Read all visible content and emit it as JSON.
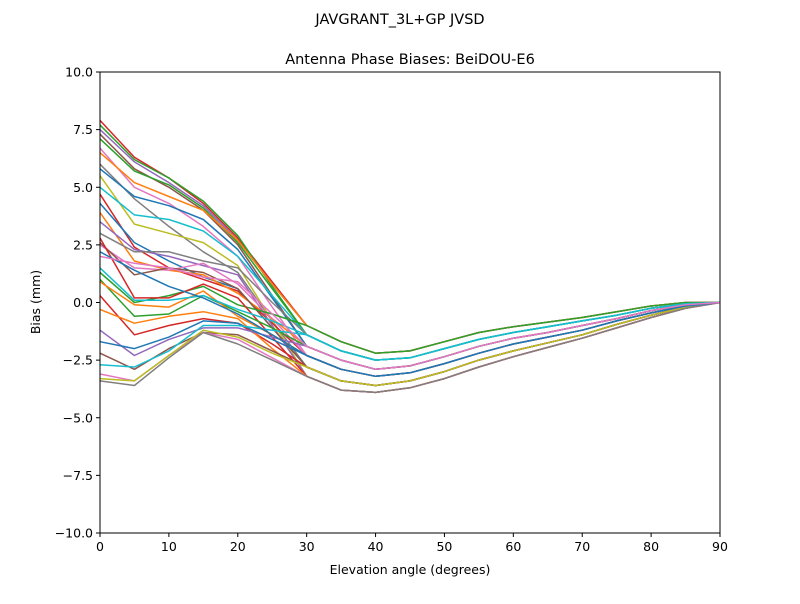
{
  "chart_data": {
    "type": "line",
    "suptitle": "JAVGRANT_3L+GP  JVSD",
    "title": "Antenna Phase Biases: BeiDOU-E6",
    "xlabel": "Elevation angle (degrees)",
    "ylabel": "Bias (mm)",
    "xlim": [
      0,
      90
    ],
    "ylim": [
      -10,
      10
    ],
    "xticks": [
      0,
      10,
      20,
      30,
      40,
      50,
      60,
      70,
      80,
      90
    ],
    "xtick_labels": [
      "0",
      "10",
      "20",
      "30",
      "40",
      "50",
      "60",
      "70",
      "80",
      "90"
    ],
    "yticks": [
      -10,
      -7.5,
      -5,
      -2.5,
      0,
      2.5,
      5,
      7.5,
      10
    ],
    "ytick_labels": [
      "−10.0",
      "−7.5",
      "−5.0",
      "−2.5",
      "0.0",
      "2.5",
      "5.0",
      "7.5",
      "10.0"
    ],
    "grid": false,
    "colors": [
      "#1f77b4",
      "#ff7f0e",
      "#2ca02c",
      "#d62728",
      "#9467bd",
      "#8c564b",
      "#e377c2",
      "#7f7f7f",
      "#bcbd22",
      "#17becf"
    ],
    "x": [
      0,
      5,
      10,
      15,
      20,
      25,
      30,
      35,
      40,
      45,
      50,
      55,
      60,
      65,
      70,
      75,
      80,
      85,
      90
    ],
    "series": [
      {
        "color": "#d62728",
        "values": [
          7.9,
          6.3,
          5.4,
          4.3,
          2.8,
          0.9,
          -1.0,
          -1.7,
          -2.2,
          -2.1,
          -1.7,
          -1.3,
          -1.05,
          -0.85,
          -0.65,
          -0.4,
          -0.15,
          0,
          0
        ]
      },
      {
        "color": "#2ca02c",
        "values": [
          7.7,
          6.2,
          5.4,
          4.4,
          2.9,
          0.7,
          -1.4,
          -2.1,
          -2.5,
          -2.4,
          -2.0,
          -1.6,
          -1.3,
          -1.05,
          -0.8,
          -0.55,
          -0.25,
          -0.05,
          0
        ]
      },
      {
        "color": "#9467bd",
        "values": [
          7.5,
          6.1,
          5.2,
          4.2,
          2.7,
          0.8,
          -1.0,
          -1.7,
          -2.2,
          -2.1,
          -1.7,
          -1.3,
          -1.05,
          -0.85,
          -0.65,
          -0.4,
          -0.15,
          0,
          0
        ]
      },
      {
        "color": "#8c564b",
        "values": [
          7.3,
          5.8,
          5.0,
          4.0,
          2.5,
          0.3,
          -1.9,
          -2.5,
          -2.9,
          -2.75,
          -2.35,
          -1.9,
          -1.55,
          -1.3,
          -1.0,
          -0.7,
          -0.35,
          -0.1,
          0
        ]
      },
      {
        "color": "#2ca02c",
        "values": [
          7.1,
          5.7,
          5.1,
          4.1,
          2.6,
          0.6,
          -1.4,
          -2.1,
          -2.5,
          -2.4,
          -2.0,
          -1.6,
          -1.3,
          -1.05,
          -0.8,
          -0.55,
          -0.25,
          -0.05,
          0
        ]
      },
      {
        "color": "#e377c2",
        "values": [
          6.7,
          5.0,
          4.3,
          3.3,
          2.0,
          -0.2,
          -2.3,
          -2.9,
          -3.2,
          -3.05,
          -2.65,
          -2.2,
          -1.8,
          -1.5,
          -1.2,
          -0.8,
          -0.45,
          -0.15,
          0
        ]
      },
      {
        "color": "#ff7f0e",
        "values": [
          6.5,
          5.2,
          4.6,
          4.0,
          2.7,
          0.8,
          -1.0,
          -1.7,
          -2.2,
          -2.1,
          -1.7,
          -1.3,
          -1.05,
          -0.85,
          -0.65,
          -0.4,
          -0.15,
          0,
          0
        ]
      },
      {
        "color": "#7f7f7f",
        "values": [
          6.0,
          4.5,
          3.3,
          2.2,
          1.3,
          -0.8,
          -2.8,
          -3.4,
          -3.6,
          -3.4,
          -3.0,
          -2.5,
          -2.1,
          -1.75,
          -1.4,
          -0.95,
          -0.55,
          -0.2,
          0
        ]
      },
      {
        "color": "#1f77b4",
        "values": [
          5.8,
          4.6,
          4.2,
          3.6,
          2.3,
          0.2,
          -1.9,
          -2.5,
          -2.9,
          -2.75,
          -2.35,
          -1.9,
          -1.55,
          -1.3,
          -1.0,
          -0.7,
          -0.35,
          -0.1,
          0
        ]
      },
      {
        "color": "#bcbd22",
        "values": [
          5.5,
          3.4,
          3.0,
          2.6,
          1.6,
          -0.8,
          -3.2,
          -3.8,
          -3.9,
          -3.7,
          -3.3,
          -2.8,
          -2.35,
          -1.95,
          -1.55,
          -1.1,
          -0.65,
          -0.25,
          0
        ]
      },
      {
        "color": "#17becf",
        "values": [
          5.0,
          3.8,
          3.6,
          3.1,
          2.0,
          0.3,
          -1.4,
          -2.1,
          -2.5,
          -2.4,
          -2.0,
          -1.6,
          -1.3,
          -1.05,
          -0.8,
          -0.55,
          -0.25,
          -0.05,
          0
        ]
      },
      {
        "color": "#d62728",
        "values": [
          4.7,
          2.4,
          1.5,
          1.0,
          0.5,
          -0.9,
          -2.3,
          -2.9,
          -3.2,
          -3.05,
          -2.65,
          -2.2,
          -1.8,
          -1.5,
          -1.2,
          -0.8,
          -0.45,
          -0.15,
          0
        ]
      },
      {
        "color": "#1f77b4",
        "values": [
          4.3,
          2.6,
          1.8,
          1.1,
          0.6,
          -1.1,
          -2.8,
          -3.4,
          -3.6,
          -3.4,
          -3.0,
          -2.5,
          -2.1,
          -1.75,
          -1.4,
          -0.95,
          -0.55,
          -0.2,
          0
        ]
      },
      {
        "color": "#ff7f0e",
        "values": [
          3.9,
          1.8,
          1.4,
          1.2,
          0.4,
          -0.7,
          -1.9,
          -2.5,
          -2.9,
          -2.75,
          -2.35,
          -1.9,
          -1.55,
          -1.3,
          -1.0,
          -0.7,
          -0.35,
          -0.1,
          0
        ]
      },
      {
        "color": "#9467bd",
        "values": [
          3.5,
          2.3,
          2.0,
          1.6,
          1.2,
          -1.0,
          -3.2,
          -3.8,
          -3.9,
          -3.7,
          -3.3,
          -2.8,
          -2.35,
          -1.95,
          -1.55,
          -1.1,
          -0.65,
          -0.25,
          0
        ]
      },
      {
        "color": "#7f7f7f",
        "values": [
          3.0,
          2.2,
          2.2,
          1.8,
          1.5,
          0.0,
          -1.4,
          -2.1,
          -2.5,
          -2.4,
          -2.0,
          -1.6,
          -1.3,
          -1.05,
          -0.8,
          -0.55,
          -0.25,
          -0.05,
          0
        ]
      },
      {
        "color": "#e377c2",
        "values": [
          2.5,
          1.5,
          1.4,
          1.7,
          0.8,
          -0.7,
          -2.3,
          -2.9,
          -3.2,
          -3.05,
          -2.65,
          -2.2,
          -1.8,
          -1.5,
          -1.2,
          -0.8,
          -0.45,
          -0.15,
          0
        ]
      },
      {
        "color": "#8c564b",
        "values": [
          2.6,
          1.2,
          1.5,
          1.3,
          0.6,
          -1.1,
          -2.8,
          -3.4,
          -3.6,
          -3.4,
          -3.0,
          -2.5,
          -2.1,
          -1.75,
          -1.4,
          -0.95,
          -0.55,
          -0.2,
          0
        ]
      },
      {
        "color": "#2ca02c",
        "values": [
          1.3,
          0.0,
          0.3,
          0.7,
          -0.1,
          -0.5,
          -1.0,
          -1.7,
          -2.2,
          -2.1,
          -1.7,
          -1.3,
          -1.05,
          -0.85,
          -0.65,
          -0.4,
          -0.15,
          0,
          0
        ]
      },
      {
        "color": "#d62728",
        "values": [
          2.8,
          0.2,
          0.2,
          0.8,
          0.2,
          -1.5,
          -3.2,
          -3.8,
          -3.9,
          -3.7,
          -3.3,
          -2.8,
          -2.35,
          -1.95,
          -1.55,
          -1.1,
          -0.65,
          -0.25,
          0
        ]
      },
      {
        "color": "#2ca02c",
        "values": [
          1.0,
          -0.6,
          -0.5,
          0.3,
          -0.4,
          -1.1,
          -1.9,
          -2.5,
          -2.9,
          -2.75,
          -2.35,
          -1.9,
          -1.55,
          -1.3,
          -1.0,
          -0.7,
          -0.35,
          -0.1,
          0
        ]
      },
      {
        "color": "#ff7f0e",
        "values": [
          0.9,
          -0.1,
          -0.2,
          0.5,
          -0.6,
          -1.4,
          -2.3,
          -2.9,
          -3.2,
          -3.05,
          -2.65,
          -2.2,
          -1.8,
          -1.5,
          -1.2,
          -0.8,
          -0.45,
          -0.15,
          0
        ]
      },
      {
        "color": "#17becf",
        "values": [
          1.5,
          0.1,
          0.1,
          0.3,
          -0.3,
          -0.8,
          -1.4,
          -2.1,
          -2.5,
          -2.4,
          -2.0,
          -1.6,
          -1.3,
          -1.05,
          -0.8,
          -0.55,
          -0.25,
          -0.05,
          0
        ]
      },
      {
        "color": "#d62728",
        "values": [
          0.3,
          -1.4,
          -1.0,
          -0.7,
          -0.9,
          -1.8,
          -2.8,
          -3.4,
          -3.6,
          -3.4,
          -3.0,
          -2.5,
          -2.1,
          -1.75,
          -1.4,
          -0.95,
          -0.55,
          -0.2,
          0
        ]
      },
      {
        "color": "#ff7f0e",
        "values": [
          -0.3,
          -0.9,
          -0.6,
          -0.4,
          -0.7,
          -2.0,
          -3.2,
          -3.8,
          -3.9,
          -3.7,
          -3.3,
          -2.8,
          -2.35,
          -1.95,
          -1.55,
          -1.1,
          -0.65,
          -0.25,
          0
        ]
      },
      {
        "color": "#9467bd",
        "values": [
          -1.2,
          -2.3,
          -1.6,
          -1.1,
          -1.1,
          -1.5,
          -1.9,
          -2.5,
          -2.9,
          -2.75,
          -2.35,
          -1.9,
          -1.55,
          -1.3,
          -1.0,
          -0.7,
          -0.35,
          -0.1,
          0
        ]
      },
      {
        "color": "#1f77b4",
        "values": [
          -1.7,
          -2.0,
          -1.5,
          -0.8,
          -0.9,
          -1.6,
          -2.3,
          -2.9,
          -3.2,
          -3.05,
          -2.65,
          -2.2,
          -1.8,
          -1.5,
          -1.2,
          -0.8,
          -0.45,
          -0.15,
          0
        ]
      },
      {
        "color": "#8c564b",
        "values": [
          -2.2,
          -2.9,
          -2.0,
          -1.3,
          -1.4,
          -2.1,
          -2.8,
          -3.4,
          -3.6,
          -3.4,
          -3.0,
          -2.5,
          -2.1,
          -1.75,
          -1.4,
          -0.95,
          -0.55,
          -0.2,
          0
        ]
      },
      {
        "color": "#17becf",
        "values": [
          -2.7,
          -2.8,
          -2.1,
          -1.0,
          -1.0,
          -1.2,
          -1.4,
          -2.1,
          -2.5,
          -2.4,
          -2.0,
          -1.6,
          -1.3,
          -1.05,
          -0.8,
          -0.55,
          -0.25,
          -0.05,
          0
        ]
      },
      {
        "color": "#e377c2",
        "values": [
          -3.1,
          -3.4,
          -2.3,
          -1.3,
          -1.6,
          -2.4,
          -3.2,
          -3.8,
          -3.9,
          -3.7,
          -3.3,
          -2.8,
          -2.35,
          -1.95,
          -1.55,
          -1.1,
          -0.65,
          -0.25,
          0
        ]
      },
      {
        "color": "#bcbd22",
        "values": [
          -3.3,
          -3.4,
          -2.3,
          -1.2,
          -1.5,
          -2.2,
          -2.8,
          -3.4,
          -3.6,
          -3.4,
          -3.0,
          -2.5,
          -2.1,
          -1.75,
          -1.4,
          -0.95,
          -0.55,
          -0.2,
          0
        ]
      },
      {
        "color": "#7f7f7f",
        "values": [
          -3.4,
          -3.6,
          -2.4,
          -1.3,
          -1.8,
          -2.5,
          -3.2,
          -3.8,
          -3.9,
          -3.7,
          -3.3,
          -2.8,
          -2.35,
          -1.95,
          -1.55,
          -1.1,
          -0.65,
          -0.25,
          0
        ]
      },
      {
        "color": "#1f77b4",
        "values": [
          2.2,
          1.4,
          0.7,
          0.2,
          -0.5,
          -1.4,
          -2.3,
          -2.9,
          -3.2,
          -3.05,
          -2.65,
          -2.2,
          -1.8,
          -1.5,
          -1.2,
          -0.8,
          -0.45,
          -0.15,
          0
        ]
      },
      {
        "color": "#e377c2",
        "values": [
          2.0,
          1.7,
          1.5,
          1.1,
          0.9,
          -0.5,
          -1.9,
          -2.5,
          -2.9,
          -2.75,
          -2.35,
          -1.9,
          -1.55,
          -1.3,
          -1.0,
          -0.7,
          -0.35,
          -0.1,
          0
        ]
      }
    ]
  }
}
